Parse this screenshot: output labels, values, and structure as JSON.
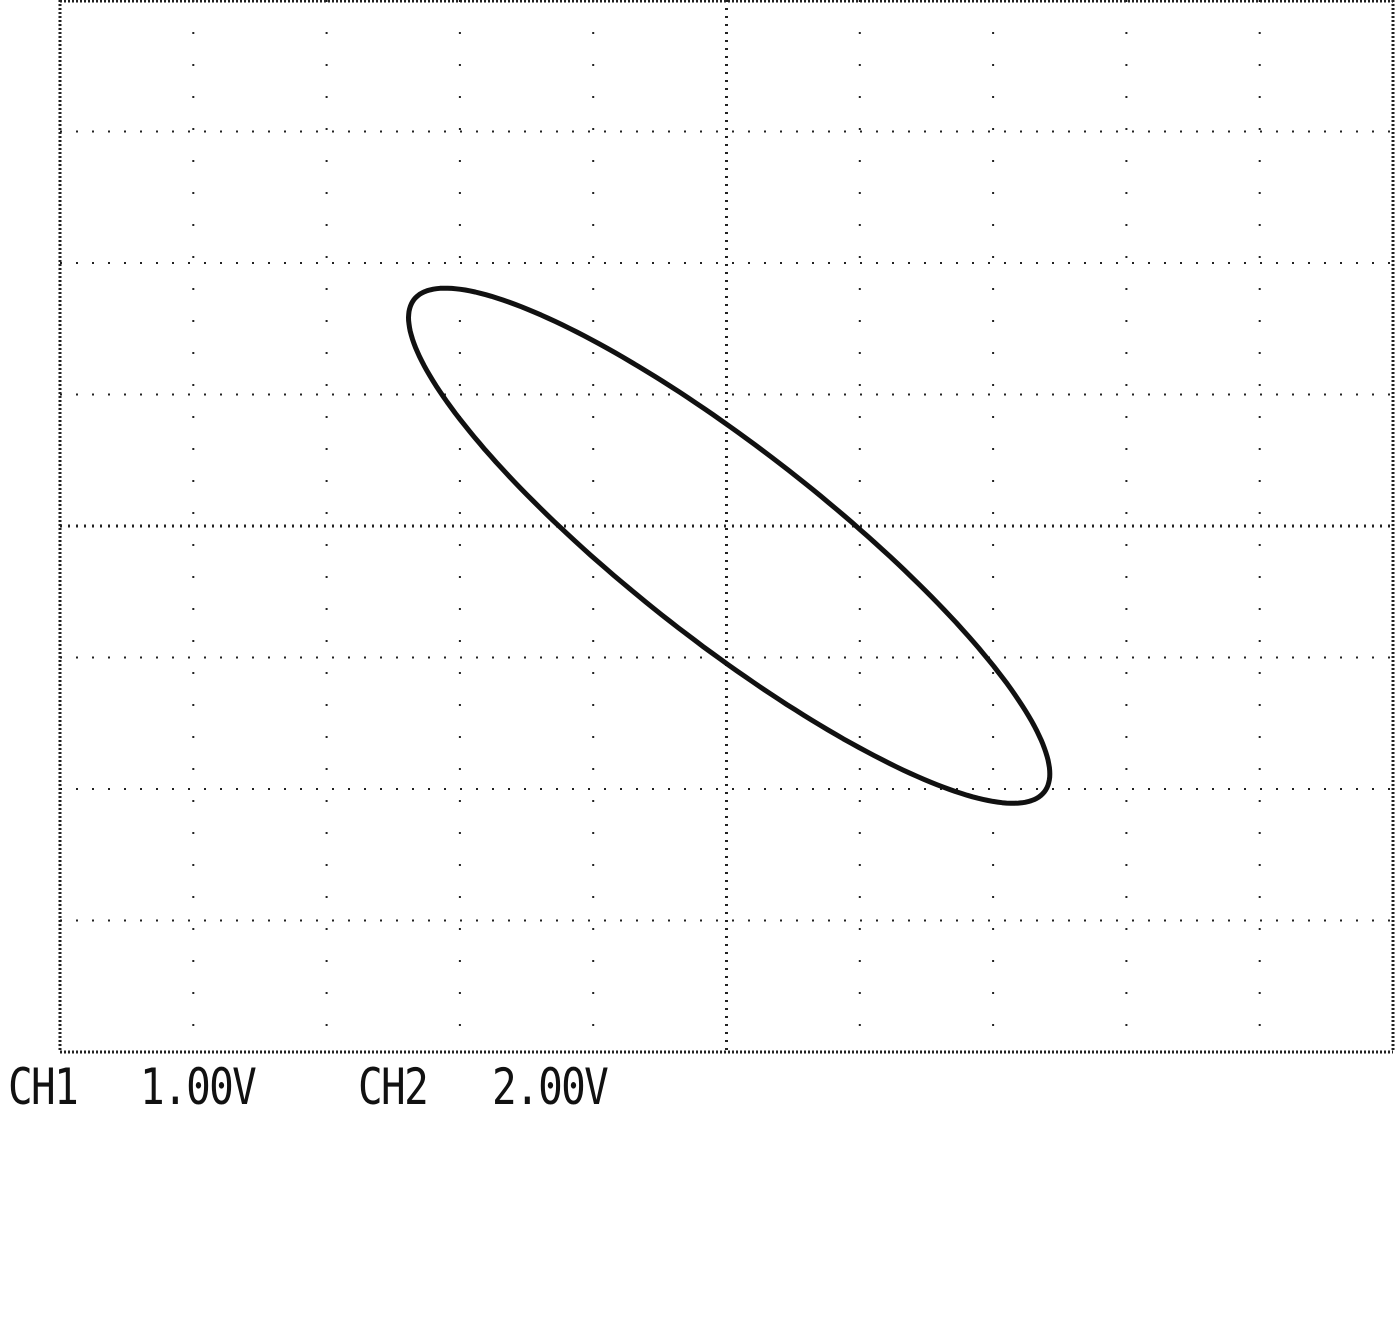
{
  "screen": {
    "mode": "X-Y",
    "divisions": {
      "horizontal": 10,
      "vertical": 8
    },
    "grid": "dotted",
    "colors": {
      "background": "#ffffff",
      "trace": "#111111",
      "graticule": "#222222"
    }
  },
  "channels": [
    {
      "name": "CH1",
      "scale": "1.00V"
    },
    {
      "name": "CH2",
      "scale": "2.00V"
    }
  ],
  "trace": {
    "shape": "ellipse",
    "center_div": [
      0.02,
      -0.15
    ],
    "semi_major_div": 3.0,
    "semi_minor_div": 0.72,
    "tilt_deg": -38
  }
}
